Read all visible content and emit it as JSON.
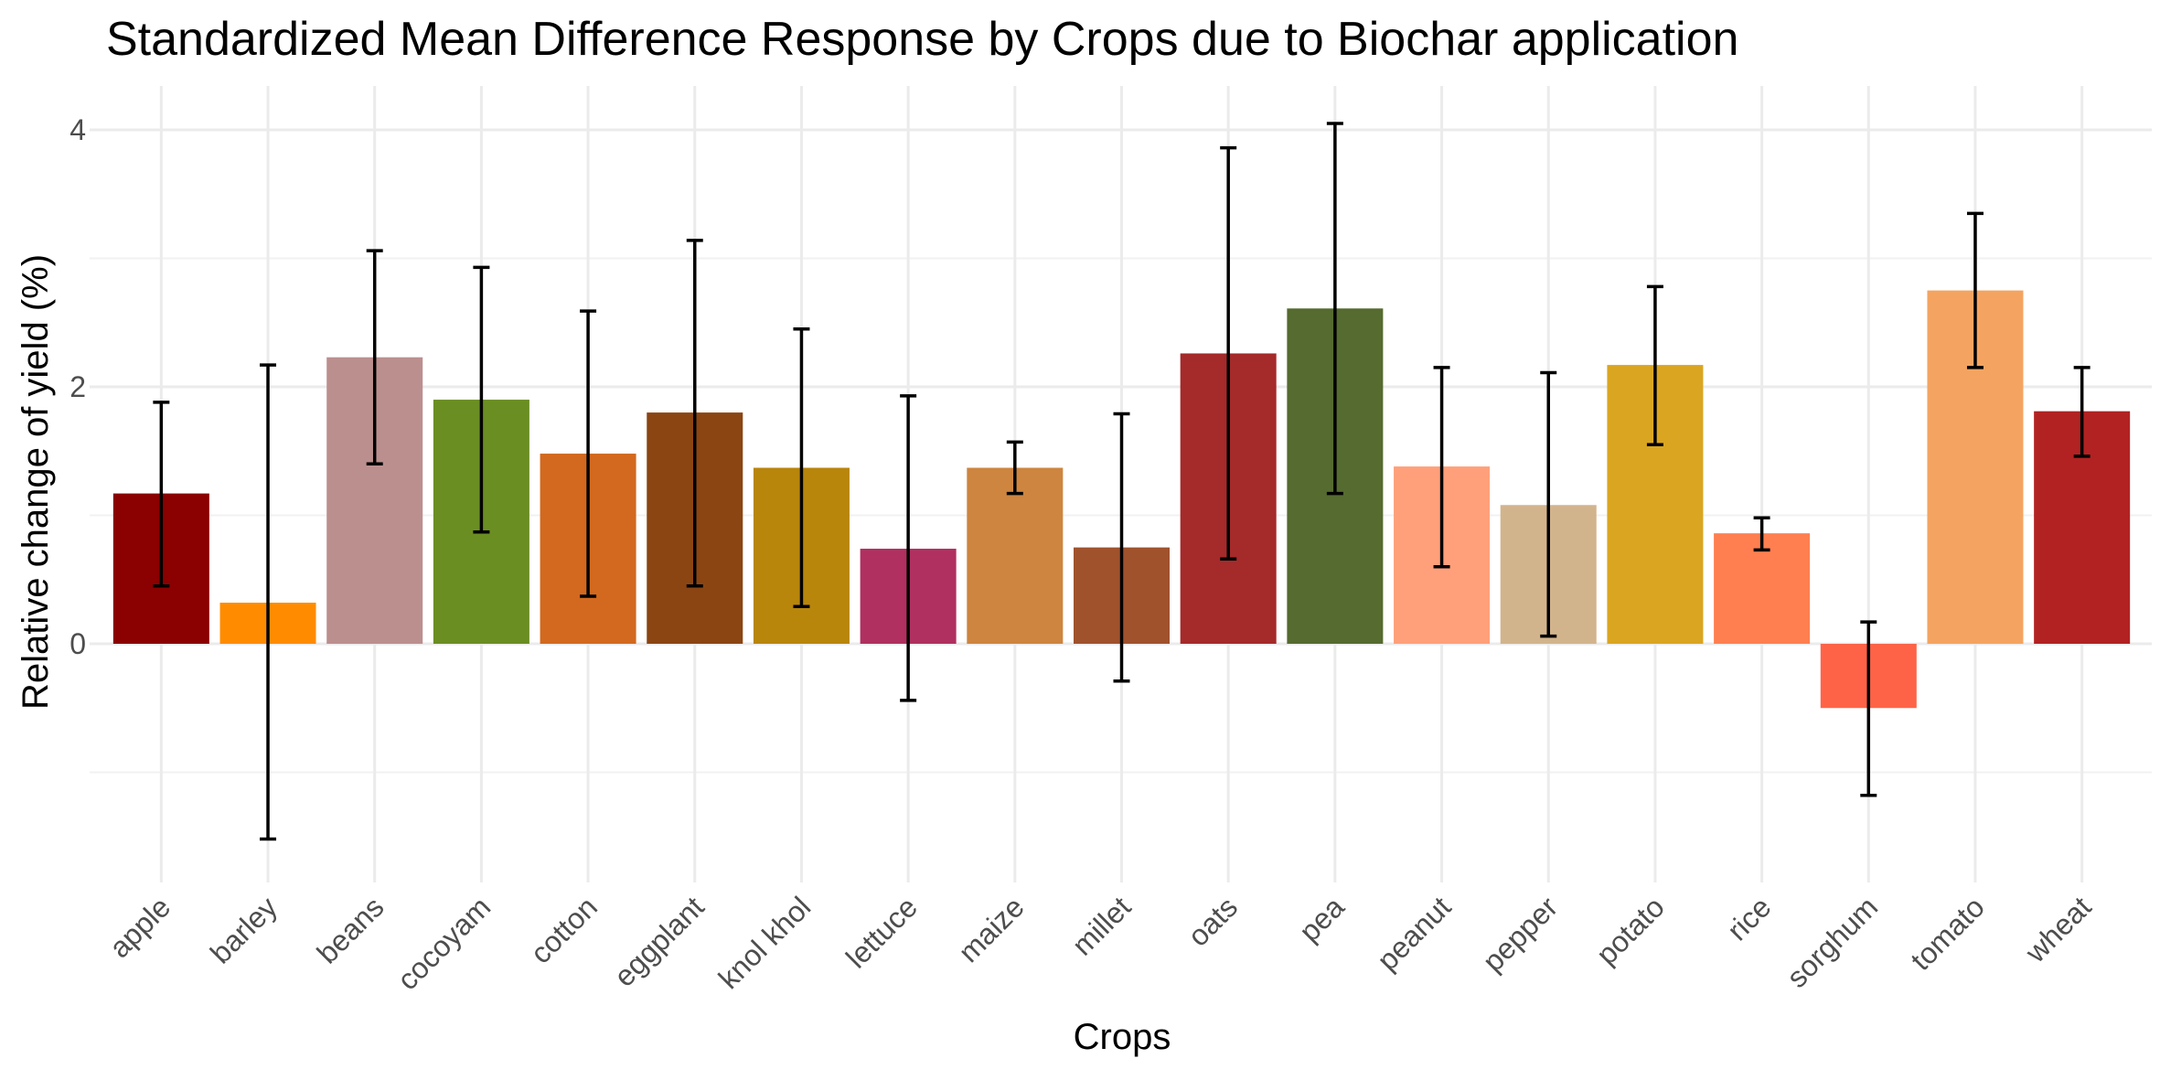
{
  "chart_data": {
    "type": "bar",
    "title": "Standardized Mean Difference Response by Crops due to Biochar application",
    "xlabel": "Crops",
    "ylabel": "Relative change of yield (%)",
    "ylim": [
      -1.85,
      4.3
    ],
    "y_ticks": [
      0,
      2,
      4
    ],
    "grid": true,
    "legend": "none",
    "categories": [
      "apple",
      "barley",
      "beans",
      "cocoyam",
      "cotton",
      "eggplant",
      "knol khol",
      "lettuce",
      "maize",
      "millet",
      "oats",
      "pea",
      "peanut",
      "pepper",
      "potato",
      "rice",
      "sorghum",
      "tomato",
      "wheat"
    ],
    "values": [
      1.17,
      0.32,
      2.23,
      1.9,
      1.48,
      1.8,
      1.37,
      0.74,
      1.37,
      0.75,
      2.26,
      2.61,
      1.38,
      1.08,
      2.17,
      0.86,
      -0.5,
      2.75,
      1.81
    ],
    "error_low": [
      0.45,
      -1.52,
      1.4,
      0.87,
      0.37,
      0.45,
      0.29,
      -0.44,
      1.17,
      -0.29,
      0.66,
      1.17,
      0.6,
      0.06,
      1.55,
      0.73,
      -1.18,
      2.15,
      1.46
    ],
    "error_high": [
      1.88,
      2.17,
      3.06,
      2.93,
      2.59,
      3.14,
      2.45,
      1.93,
      1.57,
      1.79,
      3.86,
      4.05,
      2.15,
      2.11,
      2.78,
      0.98,
      0.17,
      3.35,
      2.15
    ],
    "colors": [
      "#8B0000",
      "#FF8C00",
      "#BC8F8F",
      "#6B8E23",
      "#D2691E",
      "#8B4513",
      "#B8860B",
      "#B03060",
      "#CD853F",
      "#A0522D",
      "#A52A2A",
      "#556B2F",
      "#FFA07A",
      "#D2B48C",
      "#DAA520",
      "#FF7F50",
      "#FF6347",
      "#F4A460",
      "#B22222"
    ]
  }
}
